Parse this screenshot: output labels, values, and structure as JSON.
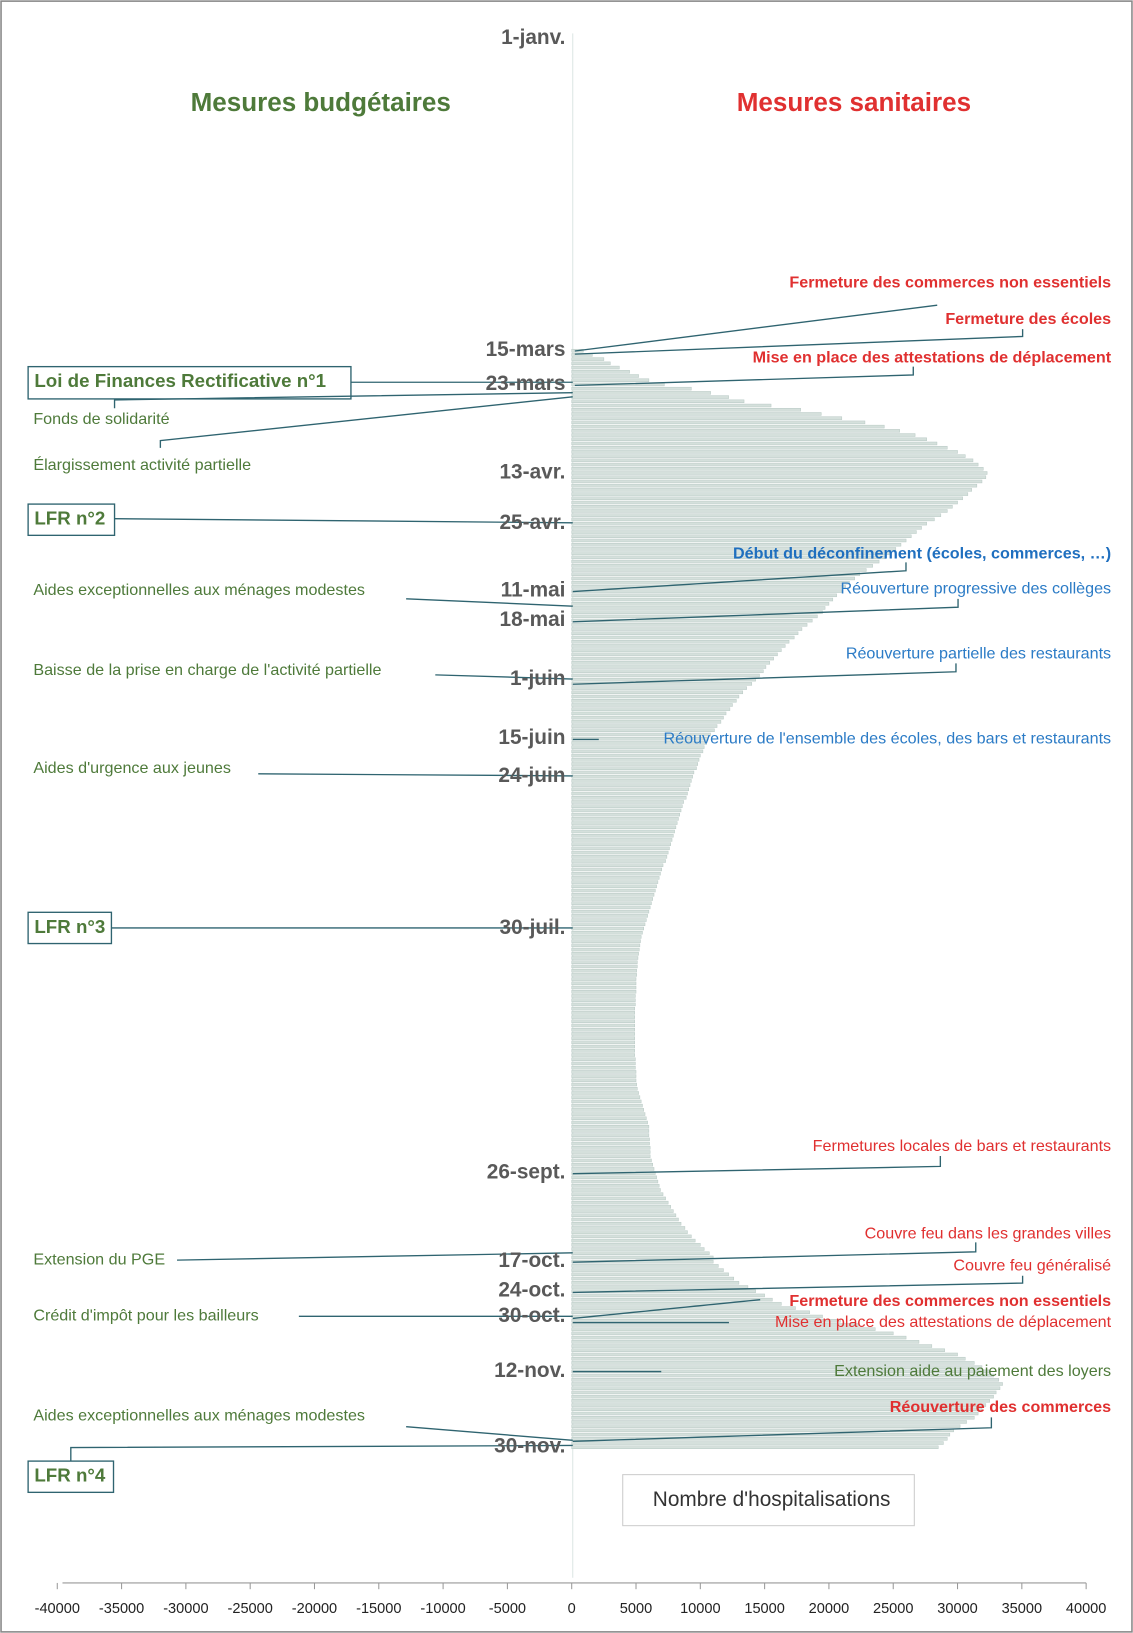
{
  "chart_data": {
    "type": "bar",
    "orientation": "horizontal",
    "headers": {
      "left": "Mesures budgétaires",
      "right": "Mesures sanitaires"
    },
    "series_name": "Nombre d'hospitalisations",
    "color": "#d5e0dc",
    "xlim": [
      -40000,
      40000
    ],
    "xticks": [
      -40000,
      -35000,
      -30000,
      -25000,
      -20000,
      -15000,
      -10000,
      -5000,
      0,
      5000,
      10000,
      15000,
      20000,
      25000,
      30000,
      35000,
      40000
    ],
    "categories": [
      "1-janv.",
      null,
      null,
      null,
      null,
      null,
      null,
      null,
      null,
      null,
      null,
      null,
      null,
      null,
      null,
      null,
      null,
      null,
      null,
      null,
      null,
      null,
      null,
      null,
      null,
      null,
      null,
      null,
      null,
      null,
      null,
      null,
      null,
      null,
      null,
      null,
      null,
      null,
      null,
      null,
      null,
      null,
      null,
      null,
      null,
      null,
      null,
      null,
      null,
      null,
      null,
      null,
      null,
      null,
      null,
      null,
      null,
      null,
      null,
      null,
      null,
      null,
      null,
      null,
      null,
      null,
      null,
      null,
      null,
      null,
      null,
      null,
      null,
      null,
      "15-mars",
      null,
      null,
      null,
      null,
      null,
      null,
      null,
      "23-mars",
      null,
      null,
      null,
      null,
      null,
      null,
      null,
      null,
      null,
      null,
      null,
      null,
      null,
      null,
      null,
      null,
      null,
      null,
      null,
      null,
      "13-avr.",
      null,
      null,
      null,
      null,
      null,
      null,
      null,
      null,
      null,
      null,
      null,
      "25-avr.",
      null,
      null,
      null,
      null,
      null,
      null,
      null,
      null,
      null,
      null,
      null,
      null,
      null,
      null,
      null,
      "11-mai",
      null,
      null,
      null,
      null,
      null,
      null,
      "18-mai",
      null,
      null,
      null,
      null,
      null,
      null,
      null,
      null,
      null,
      null,
      null,
      null,
      null,
      "1-juin",
      null,
      null,
      null,
      null,
      null,
      null,
      null,
      null,
      null,
      null,
      null,
      null,
      null,
      "15-juin",
      null,
      null,
      null,
      null,
      null,
      null,
      null,
      null,
      "24-juin",
      null,
      null,
      null,
      null,
      null,
      null,
      null,
      null,
      null,
      null,
      null,
      null,
      null,
      null,
      null,
      null,
      null,
      null,
      null,
      null,
      null,
      null,
      null,
      null,
      null,
      null,
      null,
      null,
      null,
      null,
      null,
      null,
      null,
      null,
      null,
      "30-juil.",
      null,
      null,
      null,
      null,
      null,
      null,
      null,
      null,
      null,
      null,
      null,
      null,
      null,
      null,
      null,
      null,
      null,
      null,
      null,
      null,
      null,
      null,
      null,
      null,
      null,
      null,
      null,
      null,
      null,
      null,
      null,
      null,
      null,
      null,
      null,
      null,
      null,
      null,
      null,
      null,
      null,
      null,
      null,
      null,
      null,
      null,
      null,
      null,
      null,
      null,
      null,
      null,
      null,
      null,
      null,
      null,
      null,
      "26-sept.",
      null,
      null,
      null,
      null,
      null,
      null,
      null,
      null,
      null,
      null,
      null,
      null,
      null,
      null,
      null,
      null,
      null,
      null,
      null,
      null,
      "17-oct.",
      null,
      null,
      null,
      null,
      null,
      null,
      "24-oct.",
      null,
      null,
      null,
      null,
      null,
      "30-oct.",
      null,
      null,
      null,
      null,
      null,
      null,
      null,
      null,
      null,
      null,
      null,
      null,
      "12-nov.",
      null,
      null,
      null,
      null,
      null,
      null,
      null,
      null,
      null,
      null,
      null,
      null,
      null,
      null,
      null,
      null,
      null,
      "30-nov.",
      null,
      null,
      null,
      null,
      null,
      null,
      null,
      null,
      null,
      null,
      null,
      null,
      null,
      null,
      null,
      null,
      null,
      null,
      null,
      null,
      null,
      null,
      null,
      null,
      null,
      null,
      null,
      null,
      null,
      null,
      null
    ],
    "values": [
      0,
      0,
      0,
      0,
      0,
      0,
      0,
      0,
      0,
      0,
      0,
      0,
      0,
      0,
      0,
      0,
      0,
      0,
      0,
      0,
      0,
      0,
      0,
      0,
      0,
      0,
      0,
      0,
      0,
      0,
      0,
      0,
      0,
      0,
      0,
      0,
      0,
      0,
      0,
      0,
      0,
      0,
      0,
      0,
      0,
      0,
      0,
      0,
      0,
      0,
      0,
      0,
      0,
      0,
      0,
      0,
      0,
      0,
      0,
      0,
      0,
      0,
      0,
      0,
      0,
      0,
      0,
      0,
      0,
      0,
      0,
      0,
      0,
      0,
      900,
      1600,
      2500,
      3000,
      3700,
      4500,
      5200,
      6000,
      7200,
      9300,
      10800,
      12200,
      13400,
      15500,
      17800,
      19400,
      21000,
      22800,
      24300,
      25500,
      26700,
      27600,
      28400,
      29200,
      30000,
      30600,
      31200,
      31600,
      32000,
      32300,
      32200,
      31900,
      31500,
      31100,
      30800,
      30400,
      30000,
      29600,
      29200,
      28700,
      28200,
      27600,
      27200,
      26800,
      26400,
      26000,
      25600,
      25200,
      24800,
      24400,
      23900,
      23400,
      22900,
      22400,
      22000,
      21600,
      21300,
      21000,
      20600,
      20300,
      20000,
      19700,
      19500,
      19100,
      18700,
      18300,
      17900,
      17600,
      17300,
      16900,
      16600,
      16300,
      16000,
      15700,
      15400,
      15100,
      14900,
      14600,
      14300,
      14000,
      13600,
      13300,
      13000,
      12800,
      12500,
      12300,
      12000,
      11800,
      11600,
      11300,
      11100,
      10800,
      10600,
      10500,
      10300,
      10200,
      10000,
      9900,
      9800,
      9700,
      9500,
      9400,
      9300,
      9200,
      9100,
      9000,
      8900,
      8700,
      8600,
      8500,
      8400,
      8300,
      8200,
      8100,
      8000,
      7900,
      7800,
      7700,
      7600,
      7500,
      7400,
      7300,
      7100,
      7000,
      6900,
      6800,
      6700,
      6600,
      6500,
      6400,
      6300,
      6200,
      6100,
      6000,
      5900,
      5800,
      5700,
      5600,
      5500,
      5400,
      5350,
      5300,
      5250,
      5200,
      5150,
      5100,
      5100,
      5050,
      5050,
      5000,
      5000,
      5000,
      5000,
      4950,
      4950,
      4950,
      4900,
      4900,
      4900,
      4900,
      4900,
      4900,
      4900,
      4900,
      4900,
      4900,
      4900,
      4900,
      4950,
      4950,
      4950,
      5000,
      5000,
      5000,
      5050,
      5100,
      5200,
      5300,
      5400,
      5500,
      5600,
      5700,
      5800,
      5900,
      6000,
      6000,
      6000,
      6050,
      6050,
      6100,
      6100,
      6100,
      6200,
      6300,
      6400,
      6500,
      6600,
      6700,
      6800,
      6900,
      7100,
      7300,
      7500,
      7700,
      7900,
      8100,
      8300,
      8500,
      8800,
      9000,
      9300,
      9600,
      10000,
      10300,
      10700,
      11000,
      11000,
      11400,
      11800,
      12200,
      12600,
      13000,
      13700,
      14300,
      15000,
      15600,
      16300,
      17400,
      18500,
      19500,
      20900,
      22300,
      23600,
      25000,
      26000,
      27000,
      28000,
      29000,
      30000,
      30600,
      31300,
      31900,
      32500,
      32800,
      33200,
      33500,
      33300,
      33000,
      32800,
      32500,
      32200,
      31900,
      31600,
      31300,
      30700,
      30200,
      29700,
      29400,
      29200,
      28900,
      28500,
      null,
      null,
      null,
      null,
      null,
      null,
      null,
      null,
      null,
      null,
      null,
      null,
      null,
      null,
      null,
      null,
      null,
      null,
      null,
      null,
      null,
      null,
      null,
      null,
      null,
      null,
      null,
      null,
      null,
      null,
      null
    ],
    "annotations_left": [
      {
        "text": "Loi de Finances Rectificative n°1",
        "boxed": true
      },
      {
        "text": "Fonds de solidarité",
        "boxed": false
      },
      {
        "text": "Élargissement activité partielle",
        "boxed": false
      },
      {
        "text": "LFR n°2",
        "boxed": true
      },
      {
        "text": "Aides exceptionnelles aux ménages modestes",
        "boxed": false
      },
      {
        "text": "Baisse de la prise en charge de l'activité partielle",
        "boxed": false
      },
      {
        "text": "Aides d'urgence aux jeunes",
        "boxed": false
      },
      {
        "text": "LFR n°3",
        "boxed": true
      },
      {
        "text": "Extension du PGE",
        "boxed": false
      },
      {
        "text": "Crédit d'impôt pour les bailleurs",
        "boxed": false
      },
      {
        "text": "Aides exceptionnelles aux ménages modestes",
        "boxed": false
      },
      {
        "text": "LFR n°4",
        "boxed": true
      }
    ],
    "annotations_right": [
      {
        "text": "Fermeture des commerces non essentiels",
        "color": "#e03030",
        "bold": true
      },
      {
        "text": "Fermeture des écoles",
        "color": "#e03030",
        "bold": true
      },
      {
        "text": "Mise en place des attestations de déplacement",
        "color": "#e03030",
        "bold": true
      },
      {
        "text": "Début du déconfinement (écoles, commerces, …)",
        "color": "#1f6fbf",
        "bold": true
      },
      {
        "text": "Réouverture progressive des collèges",
        "color": "#2b7bc6",
        "bold": false
      },
      {
        "text": "Réouverture partielle des restaurants",
        "color": "#2b7bc6",
        "bold": false
      },
      {
        "text": "Réouverture de l'ensemble des écoles, des bars et restaurants",
        "color": "#2b7bc6",
        "bold": false
      },
      {
        "text": "Fermetures locales de bars et restaurants",
        "color": "#e03030",
        "bold": false
      },
      {
        "text": "Couvre feu dans les grandes villes",
        "color": "#e03030",
        "bold": false
      },
      {
        "text": "Couvre feu généralisé",
        "color": "#e03030",
        "bold": false
      },
      {
        "text": "Fermeture des commerces non essentiels",
        "color": "#e03030",
        "bold": true
      },
      {
        "text": "Mise en place des attestations de déplacement",
        "color": "#e03030",
        "bold": false
      },
      {
        "text": "Extension aide au paiement des loyers",
        "color": "#4e7a3a",
        "bold": false
      },
      {
        "text": "Réouverture des commerces",
        "color": "#e03030",
        "bold": true
      }
    ]
  }
}
